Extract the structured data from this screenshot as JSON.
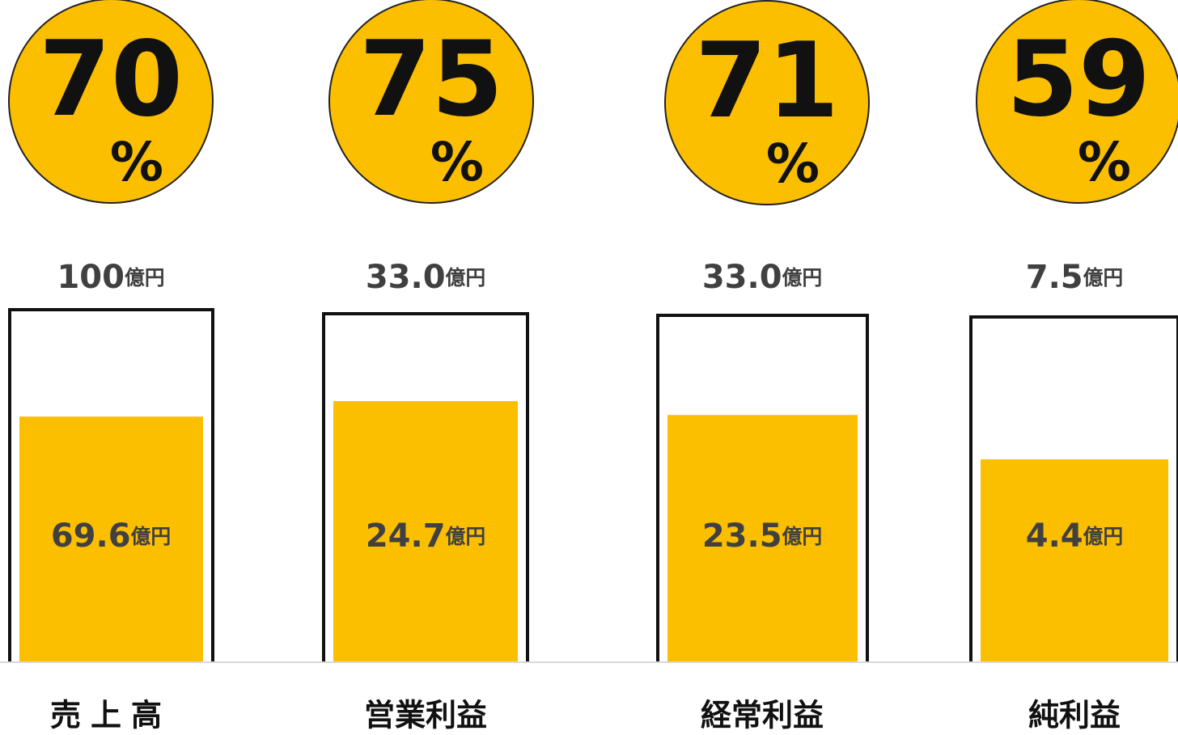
{
  "chart_data": {
    "type": "progress",
    "categories": [
      "売上高",
      "営業利益",
      "経常利益",
      "純利益"
    ],
    "values": [
      69.6,
      24.7,
      23.5,
      4.4
    ],
    "targets": [
      100,
      33,
      33,
      7.5
    ],
    "target_labels": [
      "100",
      "33.0",
      "33.0",
      "7.5"
    ],
    "percents": [
      70,
      75,
      71,
      59
    ],
    "unit": "億円",
    "percent_unit": "%",
    "color": "#fbbf00"
  }
}
